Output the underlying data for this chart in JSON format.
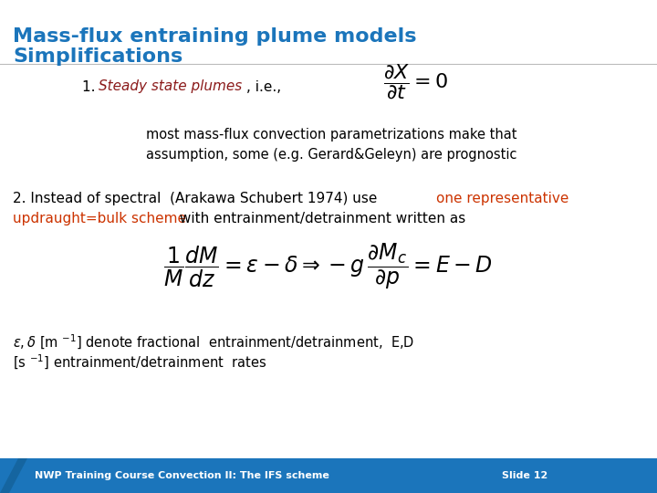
{
  "title_line1": "Mass-flux entraining plume models",
  "title_line2": "Simplifications",
  "title_color": "#1B75BB",
  "title_fontsize": 16,
  "item1_text_black1": "1. ",
  "item1_text_red": "Steady state plumes",
  "item1_text_black2": ", i.e.,",
  "item1_red_color": "#8B1A1A",
  "item1_formula": "$\\dfrac{\\partial X}{\\partial t} = 0$",
  "item1_sub1": "most mass-flux convection parametrizations make that",
  "item1_sub2": "assumption, some (e.g. Gerard&Geleyn) are prognostic",
  "item2_line1_black": "2. Instead of spectral  (Arakawa Schubert 1974) use ",
  "item2_line1_red": "one representative",
  "item2_line2_red": "updraught=bulk scheme",
  "item2_line2_black": " with entrainment/detrainment written as",
  "item2_red_color": "#CC3300",
  "formula2": "$\\dfrac{1}{M}\\dfrac{dM}{dz} = \\varepsilon - \\delta \\Rightarrow -g\\,\\dfrac{\\partial M_c}{\\partial p} = E - D$",
  "eps_line1": "$\\varepsilon,\\delta$ [m $^{-1}$] denote fractional  entrainment/detrainment,  E,D",
  "eps_line2": "[s $^{-1}$] entrainment/detrainment  rates",
  "footer_text": "NWP Training Course Convection II: The IFS scheme",
  "footer_slide": "Slide 12",
  "footer_bg": "#1B75BB",
  "footer_fg": "#FFFFFF",
  "bg_color": "#FFFFFF",
  "black": "#000000",
  "body_fs": 10.5,
  "formula_fs": 14,
  "title_fs": 16
}
